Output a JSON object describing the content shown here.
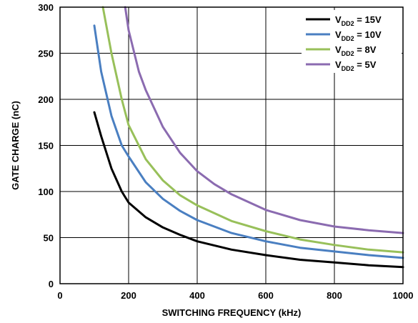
{
  "chart_data": {
    "type": "line",
    "title": "",
    "xlabel": "SWITCHING FREQUENCY (kHz)",
    "ylabel": "GATE CHARGE (nC)",
    "xlim": [
      0,
      1000
    ],
    "ylim": [
      0,
      300
    ],
    "xticks": [
      "0",
      "200",
      "400",
      "600",
      "800",
      "1000"
    ],
    "yticks": [
      "0",
      "50",
      "100",
      "150",
      "200",
      "250",
      "300"
    ],
    "grid": true,
    "legend_position": "top-right",
    "series": [
      {
        "name": "15V",
        "legend_prefix": "V",
        "legend_sub": "DD2",
        "legend_eq": " = ",
        "color": "#000000",
        "x": [
          100,
          120,
          150,
          180,
          200,
          250,
          300,
          350,
          400,
          500,
          600,
          700,
          800,
          900,
          1000
        ],
        "y": [
          186,
          160,
          125,
          100,
          88,
          72,
          61,
          53,
          46,
          37,
          31,
          26,
          23,
          20,
          18
        ]
      },
      {
        "name": "10V",
        "legend_prefix": "V",
        "legend_sub": "DD2",
        "legend_eq": " = ",
        "color": "#4a7fc1",
        "x": [
          100,
          120,
          150,
          180,
          200,
          250,
          300,
          350,
          400,
          500,
          600,
          700,
          800,
          900,
          1000
        ],
        "y": [
          280,
          230,
          182,
          150,
          138,
          110,
          92,
          79,
          69,
          55,
          46,
          39,
          35,
          31,
          28
        ]
      },
      {
        "name": "8V",
        "legend_prefix": "V",
        "legend_sub": "DD2",
        "legend_eq": " = ",
        "color": "#98c05a",
        "x": [
          125,
          150,
          180,
          200,
          250,
          300,
          350,
          400,
          500,
          600,
          700,
          800,
          900,
          1000
        ],
        "y": [
          300,
          250,
          200,
          172,
          135,
          112,
          96,
          85,
          68,
          57,
          48,
          42,
          37,
          34
        ]
      },
      {
        "name": "5V",
        "legend_prefix": "V",
        "legend_sub": "DD2",
        "legend_eq": " = ",
        "color": "#8b6bb0",
        "x": [
          190,
          200,
          230,
          250,
          300,
          350,
          400,
          450,
          500,
          600,
          700,
          800,
          900,
          1000
        ],
        "y": [
          300,
          275,
          230,
          210,
          170,
          142,
          122,
          108,
          97,
          80,
          69,
          62,
          58,
          55
        ]
      }
    ]
  }
}
